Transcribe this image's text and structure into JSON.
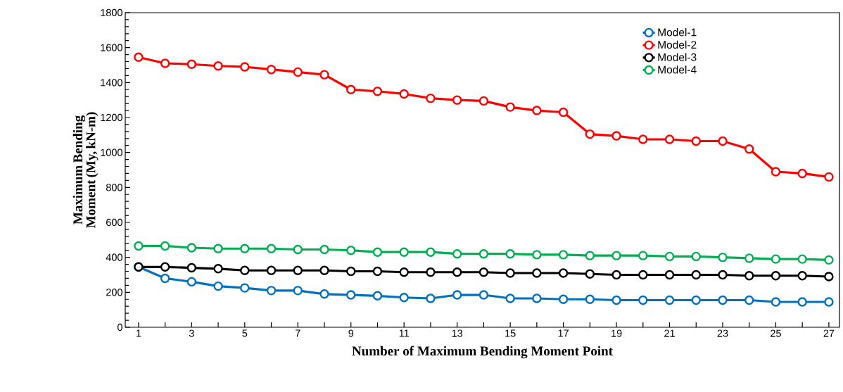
{
  "chart_data": {
    "type": "line",
    "xlabel": "Number of Maximum Bending Moment Point",
    "ylabel": "Maximum Bending Moment (My, kN-m)",
    "x": [
      1,
      2,
      3,
      4,
      5,
      6,
      7,
      8,
      9,
      10,
      11,
      12,
      13,
      14,
      15,
      16,
      17,
      18,
      19,
      20,
      21,
      22,
      23,
      24,
      25,
      26,
      27
    ],
    "series": [
      {
        "name": "Model-1",
        "color": "#0070c0",
        "values": [
          345,
          280,
          260,
          235,
          225,
          210,
          210,
          190,
          185,
          180,
          170,
          165,
          185,
          185,
          165,
          165,
          160,
          160,
          155,
          155,
          155,
          155,
          155,
          155,
          145,
          145,
          145
        ]
      },
      {
        "name": "Model-2",
        "color": "#ff0000",
        "values": [
          1545,
          1510,
          1505,
          1495,
          1490,
          1475,
          1460,
          1445,
          1360,
          1350,
          1335,
          1310,
          1300,
          1295,
          1260,
          1240,
          1230,
          1105,
          1095,
          1075,
          1075,
          1065,
          1065,
          1020,
          890,
          880,
          860
        ]
      },
      {
        "name": "Model-3",
        "color": "#000000",
        "values": [
          345,
          345,
          340,
          335,
          325,
          325,
          325,
          325,
          320,
          320,
          315,
          315,
          315,
          315,
          310,
          310,
          310,
          305,
          300,
          300,
          300,
          300,
          300,
          295,
          295,
          295,
          290
        ]
      },
      {
        "name": "Model-4",
        "color": "#00b050",
        "values": [
          465,
          465,
          455,
          450,
          450,
          450,
          445,
          445,
          440,
          430,
          430,
          430,
          420,
          420,
          420,
          415,
          415,
          410,
          410,
          410,
          405,
          405,
          400,
          395,
          390,
          390,
          385
        ]
      }
    ],
    "xlim": [
      0.5,
      27.4
    ],
    "ylim": [
      0,
      1800
    ],
    "xticks": [
      1,
      {
        "value": 2,
        "label": null
      },
      3,
      {
        "value": 4,
        "label": null
      },
      5,
      {
        "value": 6,
        "label": null
      },
      7,
      {
        "value": 8,
        "label": null
      },
      9,
      {
        "value": 10,
        "label": null
      },
      11,
      {
        "value": 12,
        "label": null
      },
      13,
      {
        "value": 14,
        "label": null
      },
      15,
      {
        "value": 16,
        "label": null
      },
      17,
      {
        "value": 18,
        "label": null
      },
      19,
      {
        "value": 20,
        "label": null
      },
      21,
      {
        "value": 22,
        "label": null
      },
      23,
      {
        "value": 24,
        "label": null
      },
      25,
      {
        "value": 26,
        "label": null
      },
      27
    ],
    "yticks": [
      0,
      200,
      400,
      600,
      800,
      1000,
      1200,
      1400,
      1600,
      1800
    ],
    "grid": false,
    "legend": "top right",
    "marker": "circle",
    "line_style": "solid"
  }
}
